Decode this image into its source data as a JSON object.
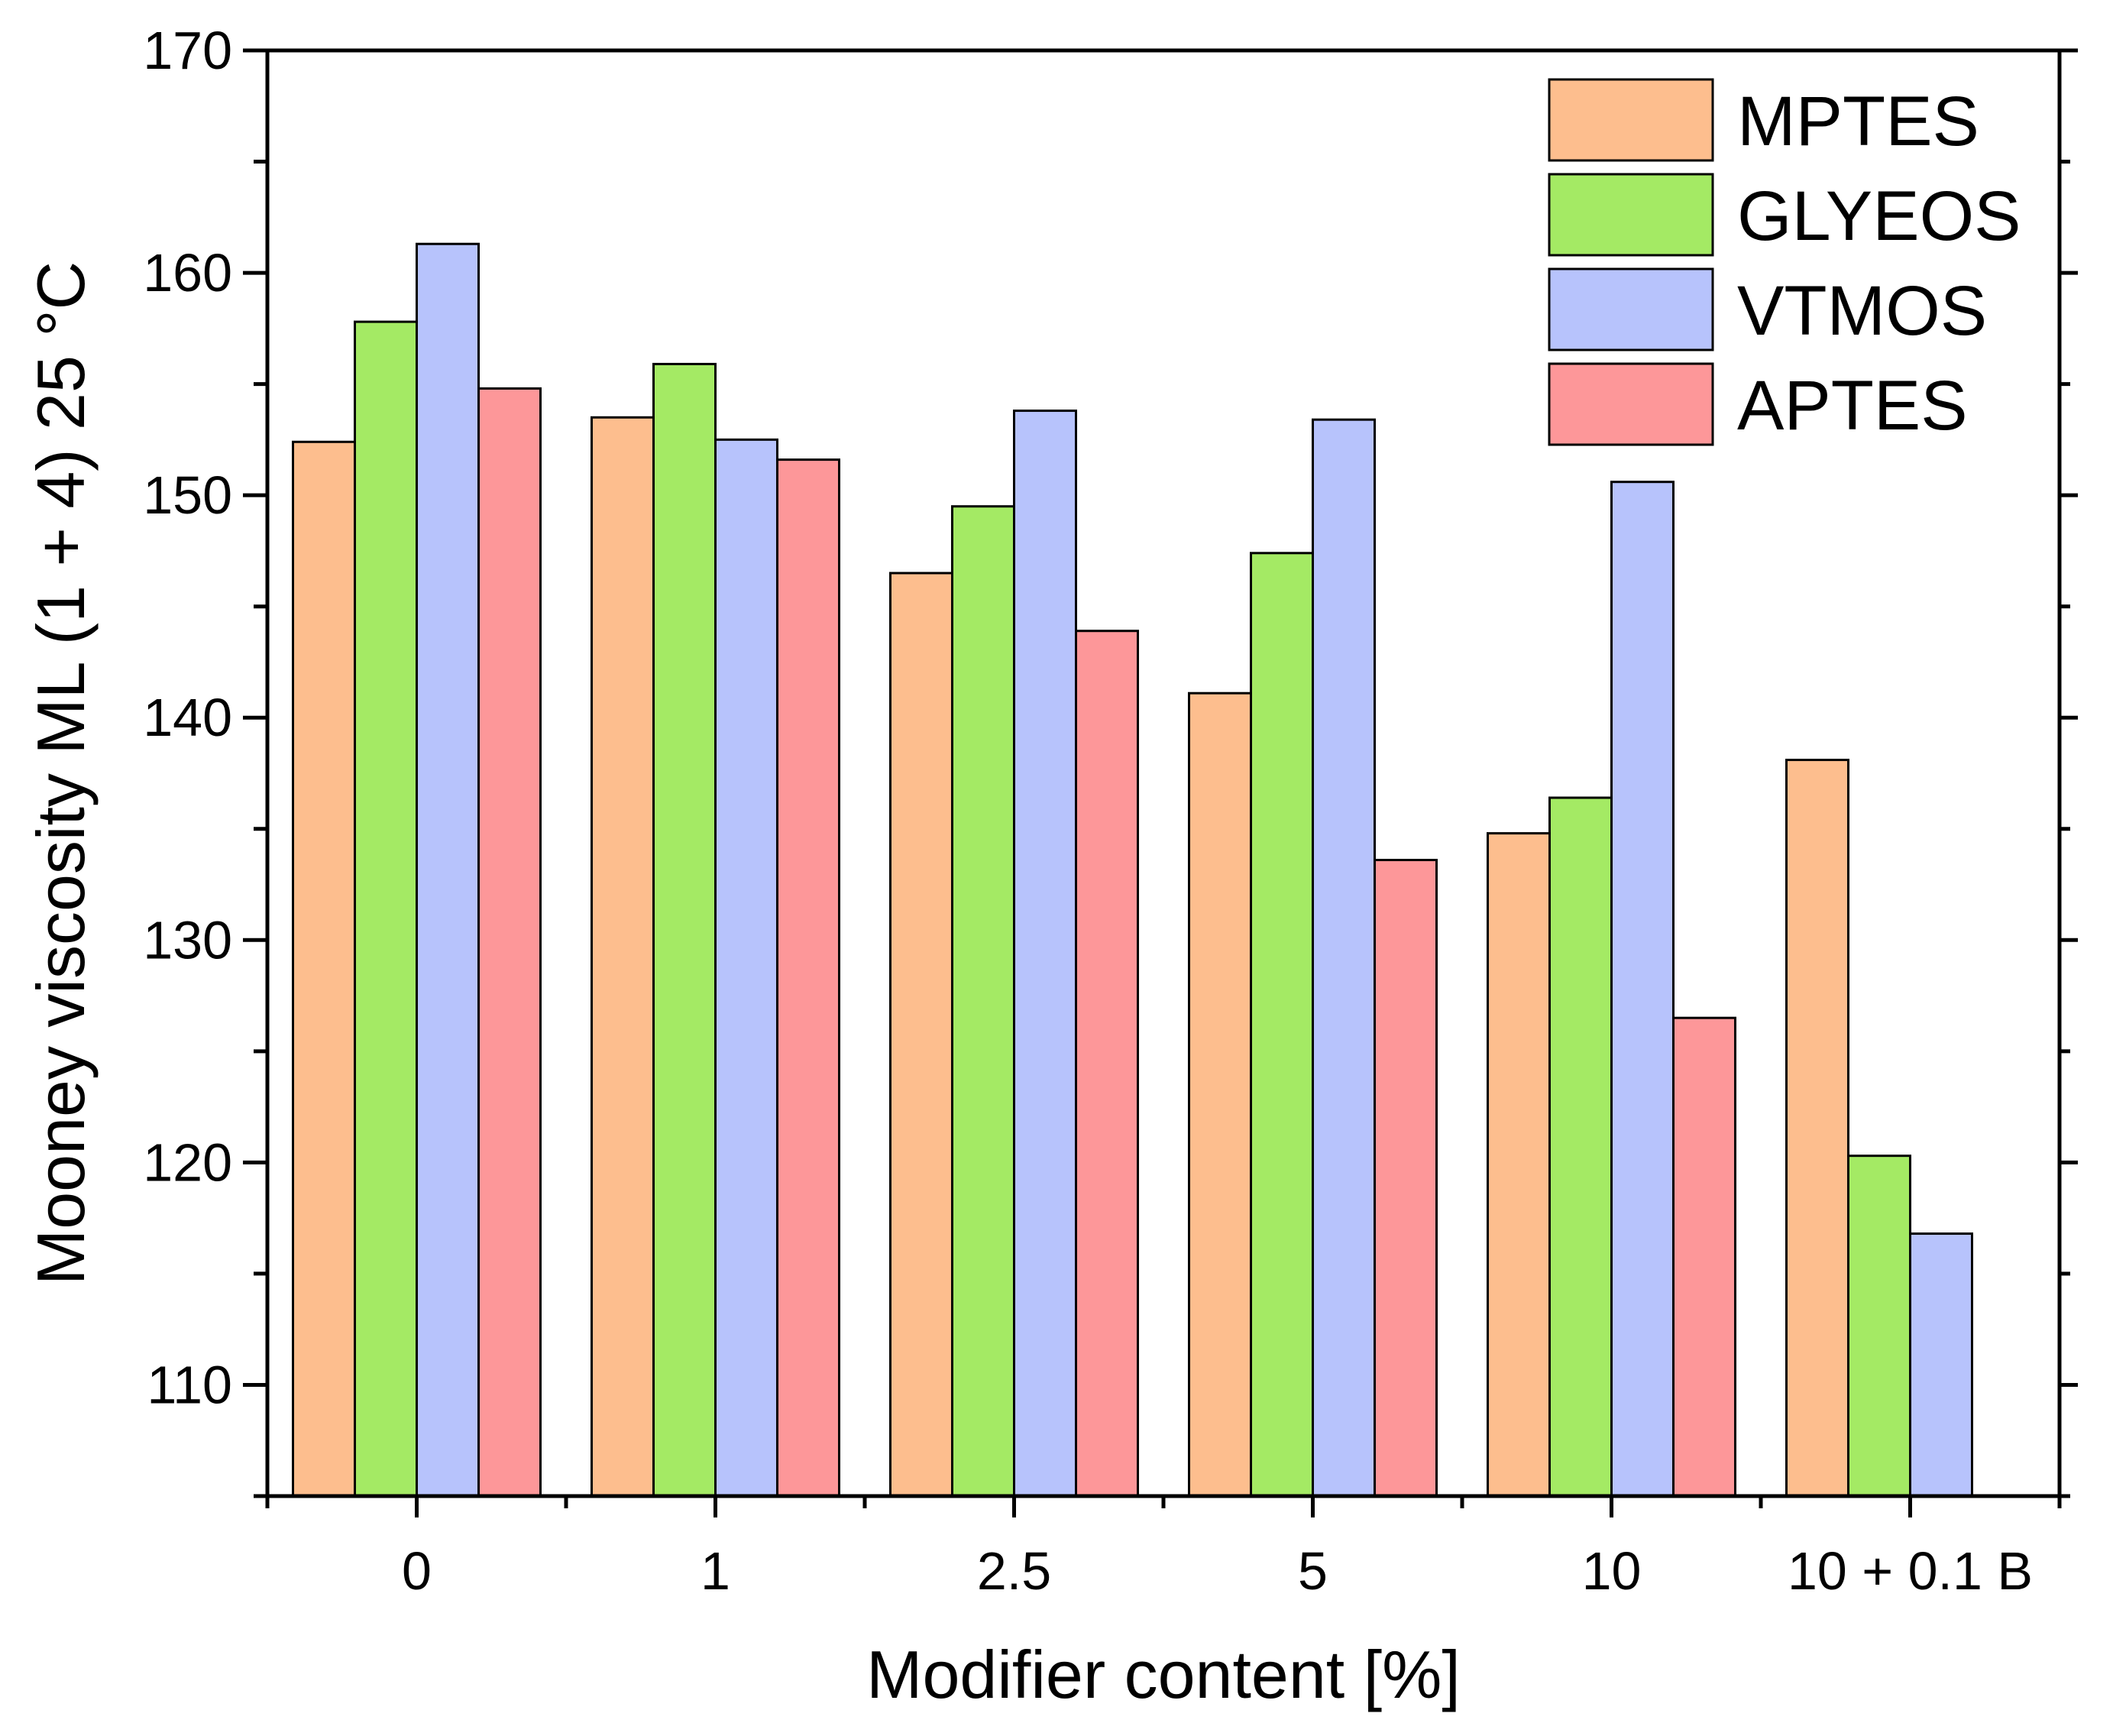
{
  "chart_data": {
    "type": "bar",
    "title": "",
    "xlabel": "Modifier content [%]",
    "ylabel": "Mooney viscosity ML (1 + 4) 25 °C",
    "ylim": [
      105,
      170
    ],
    "yticks": [
      110,
      120,
      130,
      140,
      150,
      160,
      170
    ],
    "categories": [
      "0",
      "1",
      "2.5",
      "5",
      "10",
      "10 + 0.1 B"
    ],
    "legend_position": "top-right",
    "series": [
      {
        "name": "MPTES",
        "color": "#FDBE8E",
        "values": [
          152.4,
          153.5,
          146.5,
          141.1,
          134.8,
          138.1
        ]
      },
      {
        "name": "GLYEOS",
        "color": "#A4EA64",
        "values": [
          157.8,
          155.9,
          149.5,
          147.4,
          136.4,
          120.3
        ]
      },
      {
        "name": "VTMOS",
        "color": "#B7C3FC",
        "values": [
          161.3,
          152.5,
          153.8,
          153.4,
          150.6,
          116.8
        ]
      },
      {
        "name": "APTES",
        "color": "#FD9799",
        "values": [
          154.8,
          151.6,
          143.9,
          133.6,
          126.5,
          null
        ]
      }
    ]
  }
}
